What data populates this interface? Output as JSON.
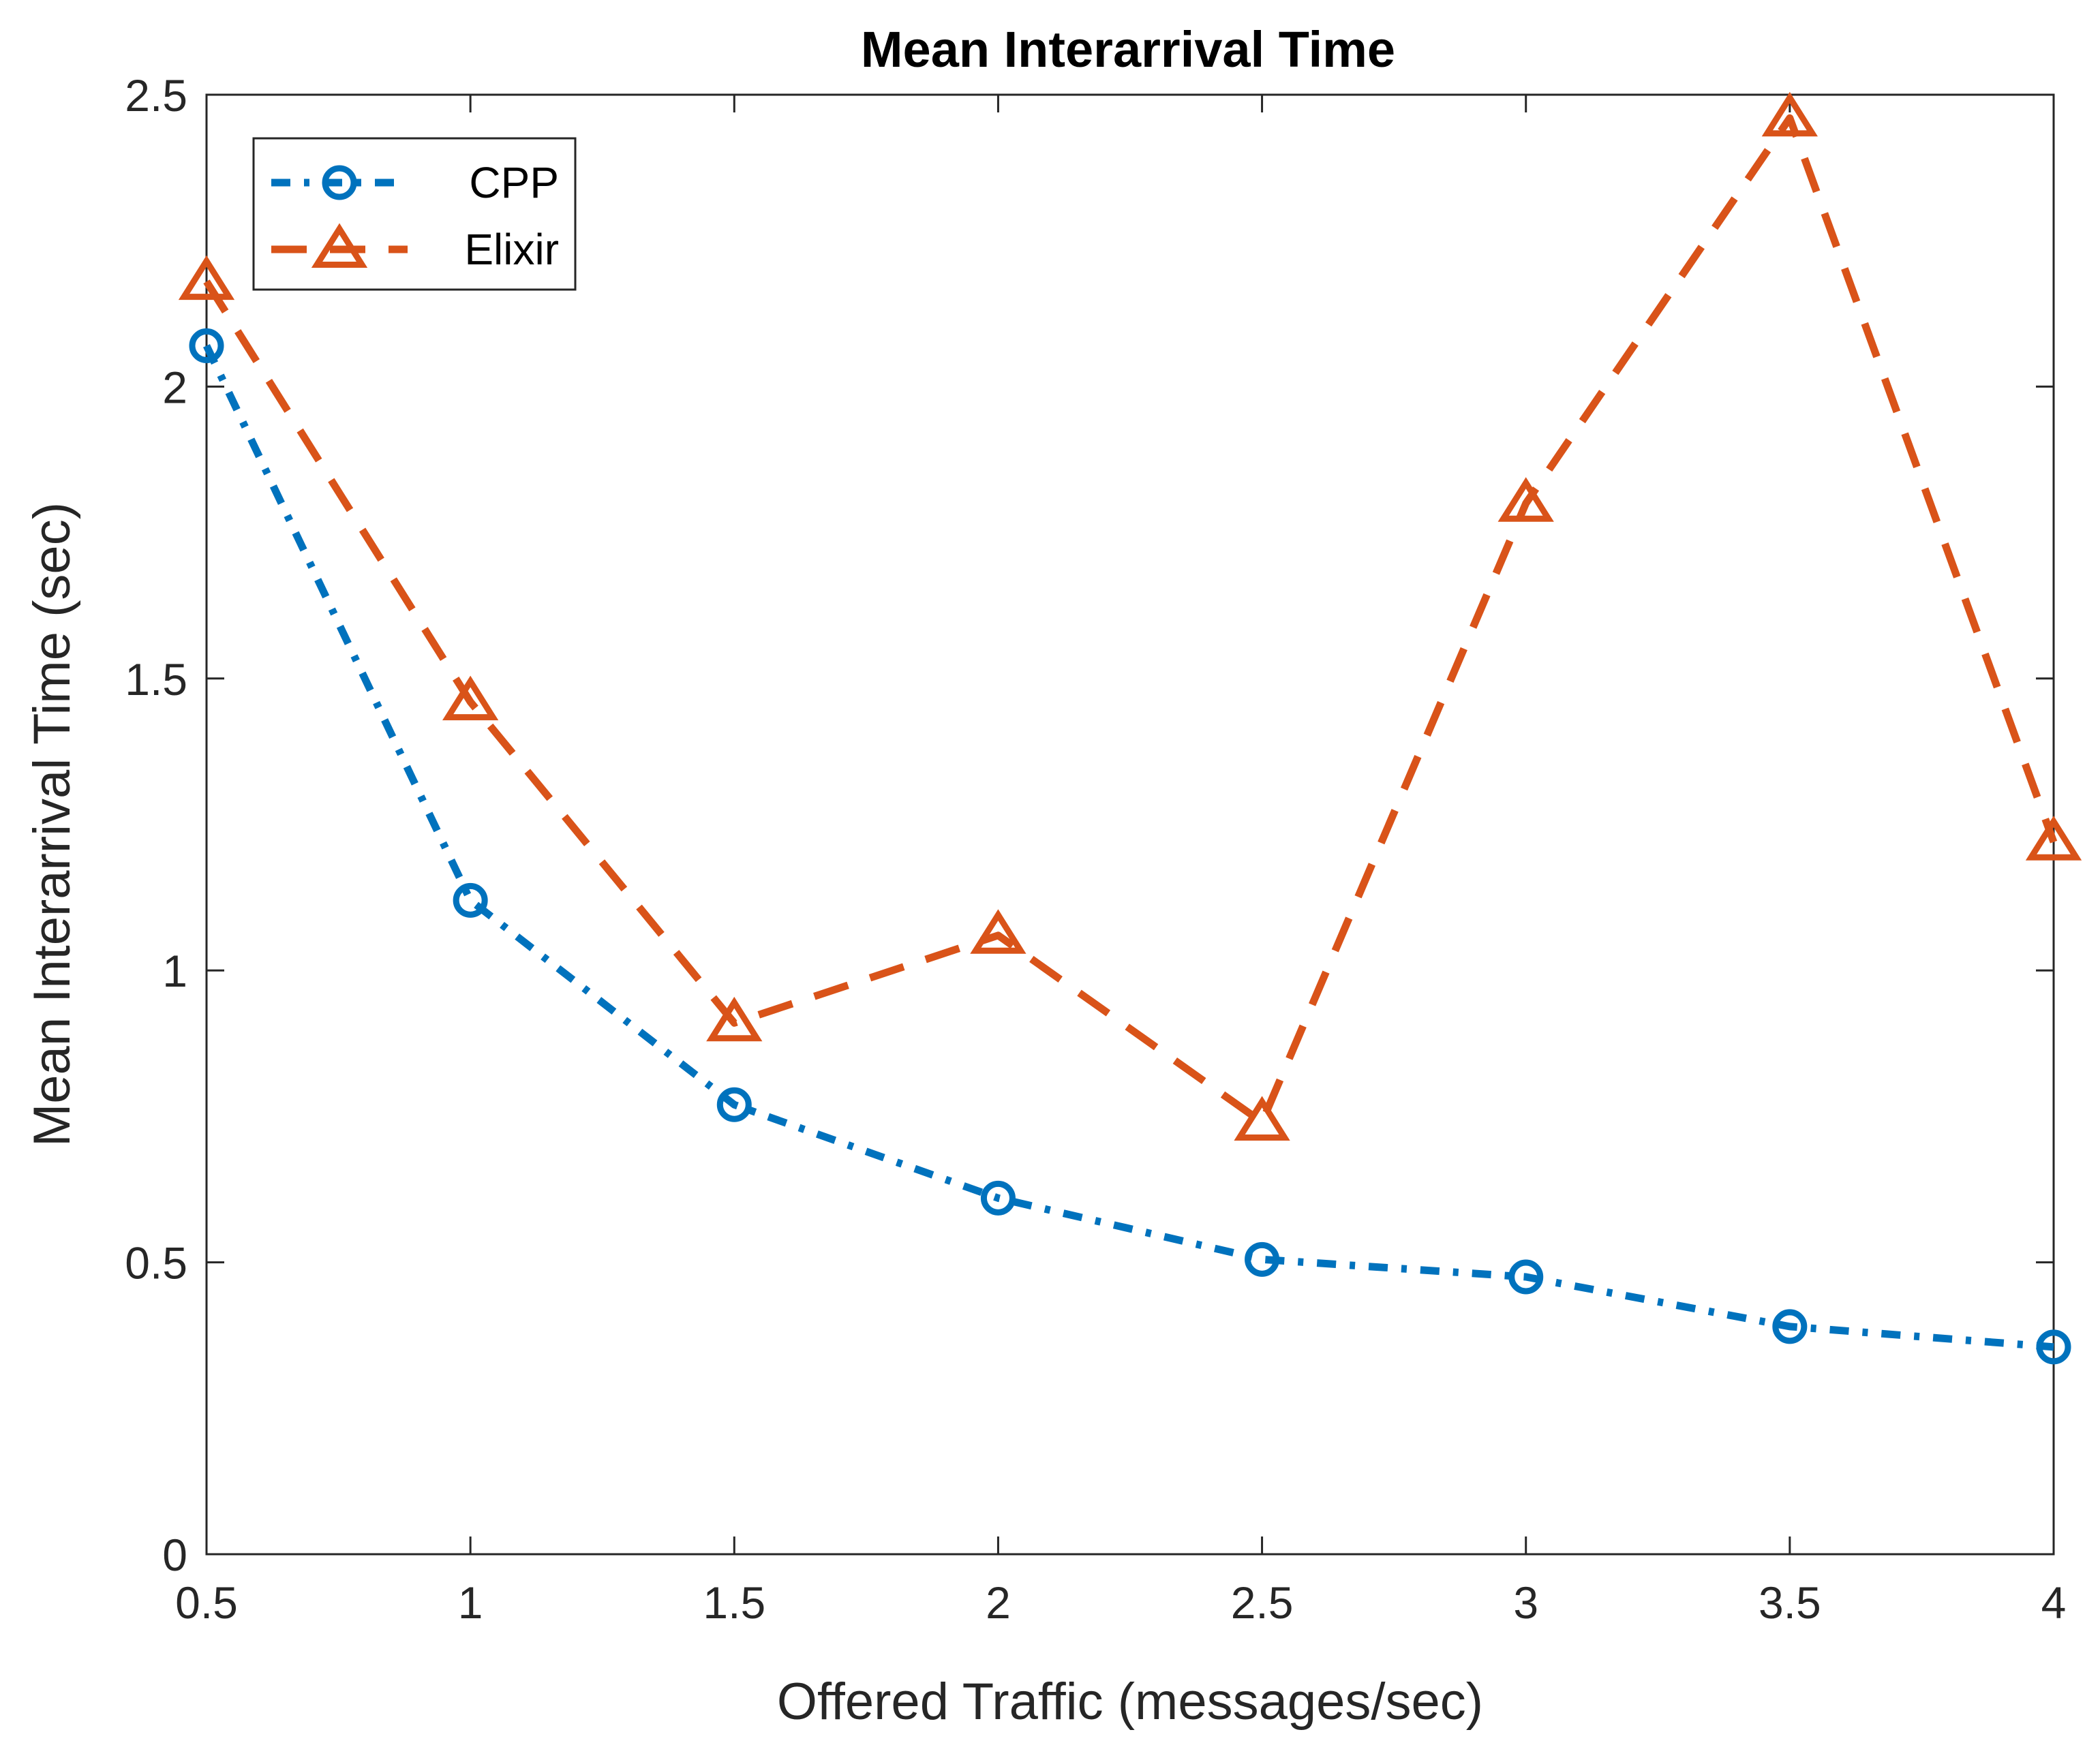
{
  "chart_data": {
    "type": "line",
    "title": "Mean Interarrival Time",
    "xlabel": "Offered Traffic (messages/sec)",
    "ylabel": "Mean Interarrival Time (sec)",
    "x": [
      0.5,
      1,
      1.5,
      2,
      2.5,
      3,
      3.5,
      4
    ],
    "xlim": [
      0.5,
      4
    ],
    "ylim": [
      0,
      2.5
    ],
    "xticks": [
      "0.5",
      "1",
      "1.5",
      "2",
      "2.5",
      "3",
      "3.5",
      "4"
    ],
    "yticks": [
      "0",
      "0.5",
      "1",
      "1.5",
      "2",
      "2.5"
    ],
    "grid": false,
    "legend_position": "top-left",
    "series": [
      {
        "name": "CPP",
        "values": [
          2.07,
          1.12,
          0.77,
          0.61,
          0.505,
          0.475,
          0.39,
          0.355
        ],
        "color": "#0072BD",
        "marker": "circle",
        "line_style": "dash-dot"
      },
      {
        "name": "Elixir",
        "values": [
          2.18,
          1.46,
          0.91,
          1.06,
          0.74,
          1.8,
          2.46,
          1.22
        ],
        "color": "#D95319",
        "marker": "triangle",
        "line_style": "dashed"
      }
    ]
  }
}
